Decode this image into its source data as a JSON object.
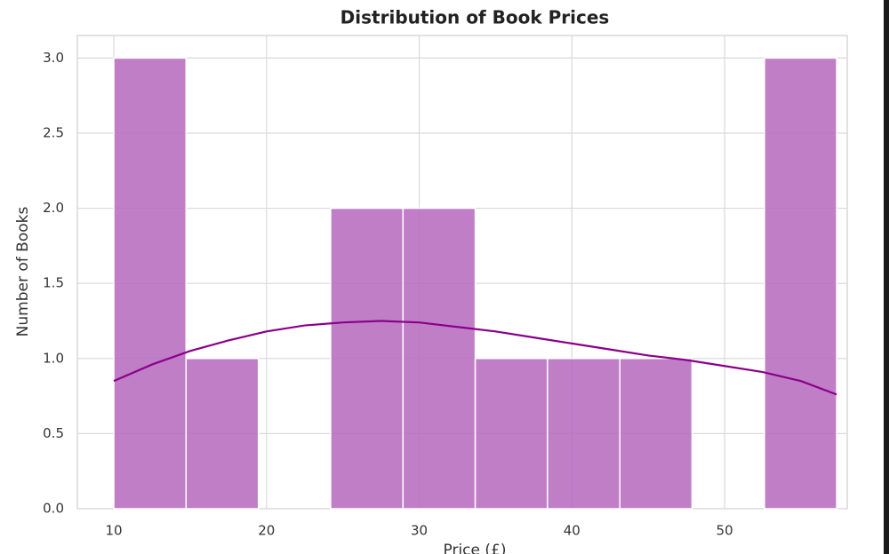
{
  "chart_data": {
    "type": "histogram",
    "title": "Distribution of Book Prices",
    "x_label": "Price (£)",
    "y_label": "Number of Books",
    "bins": [
      10,
      14.73,
      19.47,
      24.2,
      28.94,
      33.67,
      38.4,
      43.14,
      47.87,
      52.61,
      57.34
    ],
    "counts": [
      3,
      1,
      0,
      2,
      2,
      1,
      1,
      1,
      0,
      3
    ],
    "color": "#b567bd",
    "kde": {
      "color": "#8b008b",
      "x": [
        10,
        12.5,
        15,
        17.5,
        20,
        22.5,
        25,
        27.5,
        30,
        32.5,
        35,
        37.5,
        40,
        42.5,
        45,
        47.5,
        50,
        52.5,
        55,
        57.34
      ],
      "values": [
        0.85,
        0.96,
        1.05,
        1.12,
        1.18,
        1.22,
        1.24,
        1.25,
        1.24,
        1.21,
        1.18,
        1.14,
        1.1,
        1.06,
        1.02,
        0.99,
        0.95,
        0.91,
        0.85,
        0.76
      ]
    },
    "xlim": [
      7.61,
      58.03
    ],
    "ylim": [
      0,
      3.15
    ],
    "xticks": [
      10,
      20,
      30,
      40,
      50
    ],
    "yticks": [
      {
        "value": 0,
        "label": "0.0"
      },
      0.5,
      {
        "value": 1,
        "label": "1.0"
      },
      1.5,
      {
        "value": 2,
        "label": "2.0"
      },
      2.5,
      {
        "value": 3,
        "label": "3.0"
      }
    ],
    "grid": true
  }
}
